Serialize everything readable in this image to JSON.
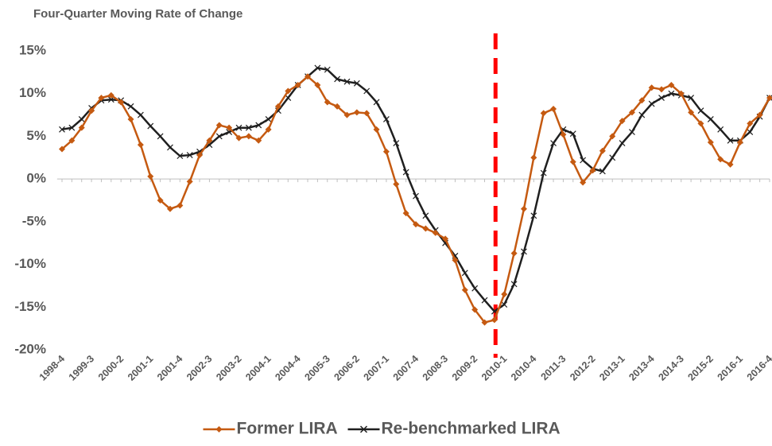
{
  "chart_data": {
    "type": "line",
    "title": "Four-Quarter Moving Rate of Change",
    "categories": [
      "1998-4",
      null,
      null,
      "1999-3",
      null,
      null,
      "2000-2",
      null,
      null,
      "2001-1",
      null,
      null,
      "2001-4",
      null,
      null,
      "2002-3",
      null,
      null,
      "2003-2",
      null,
      null,
      "2004-1",
      null,
      null,
      "2004-4",
      null,
      null,
      "2005-3",
      null,
      null,
      "2006-2",
      null,
      null,
      "2007-1",
      null,
      null,
      "2007-4",
      null,
      null,
      "2008-3",
      null,
      null,
      "2009-2",
      null,
      null,
      "2010-1",
      null,
      null,
      "2010-4",
      null,
      null,
      "2011-3",
      null,
      null,
      "2012-2",
      null,
      null,
      "2013-1",
      null,
      null,
      "2013-4",
      null,
      null,
      "2014-3",
      null,
      null,
      "2015-2",
      null,
      null,
      "2016-1",
      null,
      null,
      "2016-4"
    ],
    "series": [
      {
        "name": "Former LIRA",
        "color": "#c55a11",
        "marker": "diamond",
        "values": [
          3.5,
          4.5,
          6,
          8,
          9.5,
          9.8,
          9,
          7,
          4,
          0.3,
          -2.5,
          -3.5,
          -3.1,
          -0.3,
          2.8,
          4.5,
          6.3,
          6,
          4.8,
          5,
          4.5,
          5.8,
          8.5,
          10.3,
          11,
          12,
          11,
          9,
          8.5,
          7.5,
          7.8,
          7.7,
          5.8,
          3.2,
          -0.6,
          -4,
          -5.3,
          -5.8,
          -6.3,
          -7,
          -9.5,
          -13,
          -15.3,
          -16.8,
          -16.5,
          -13.5,
          -8.7,
          -3.5,
          2.5,
          7.7,
          8.2,
          5.2,
          2,
          -0.4,
          1,
          3.3,
          5,
          6.8,
          7.8,
          9.2,
          10.7,
          10.5,
          11,
          10,
          7.8,
          6.5,
          4.3,
          2.3,
          1.7,
          4.3,
          6.5,
          7.5,
          9.5
        ]
      },
      {
        "name": "Re-benchmarked LIRA",
        "color": "#1f1f1f",
        "marker": "x",
        "values": [
          5.8,
          6,
          7,
          8.3,
          9.2,
          9.3,
          9.2,
          8.5,
          7.5,
          6.2,
          5,
          3.7,
          2.7,
          2.8,
          3.2,
          4,
          5,
          5.5,
          6,
          6,
          6.3,
          7,
          8,
          9.5,
          11,
          12,
          13,
          12.8,
          11.7,
          11.4,
          11.2,
          10.3,
          9,
          7,
          4.2,
          0.8,
          -2,
          -4.3,
          -6,
          -7.5,
          -9,
          -11,
          -12.8,
          -14.2,
          -15.5,
          -14.7,
          -12.3,
          -8.5,
          -4.3,
          0.7,
          4.2,
          5.8,
          5.3,
          2.2,
          1.2,
          0.9,
          2.5,
          4.2,
          5.5,
          7.5,
          8.8,
          9.5,
          10,
          9.8,
          9.5,
          8,
          7,
          5.8,
          4.5,
          4.5,
          5.5,
          7.3,
          9.5
        ]
      }
    ],
    "ylim": [
      -20,
      15
    ],
    "yticks": [
      {
        "value": -20,
        "label": "-20%"
      },
      {
        "value": -15,
        "label": "-15%"
      },
      {
        "value": -10,
        "label": "-10%"
      },
      {
        "value": -5,
        "label": "-5%"
      },
      {
        "value": 0,
        "label": "0%"
      },
      {
        "value": 5,
        "label": "5%"
      },
      {
        "value": 10,
        "label": "10%"
      },
      {
        "value": 15,
        "label": "15%"
      }
    ],
    "grid": false,
    "vline": {
      "category": "2010-1",
      "color": "#ff0000"
    },
    "legend": "bottom"
  }
}
